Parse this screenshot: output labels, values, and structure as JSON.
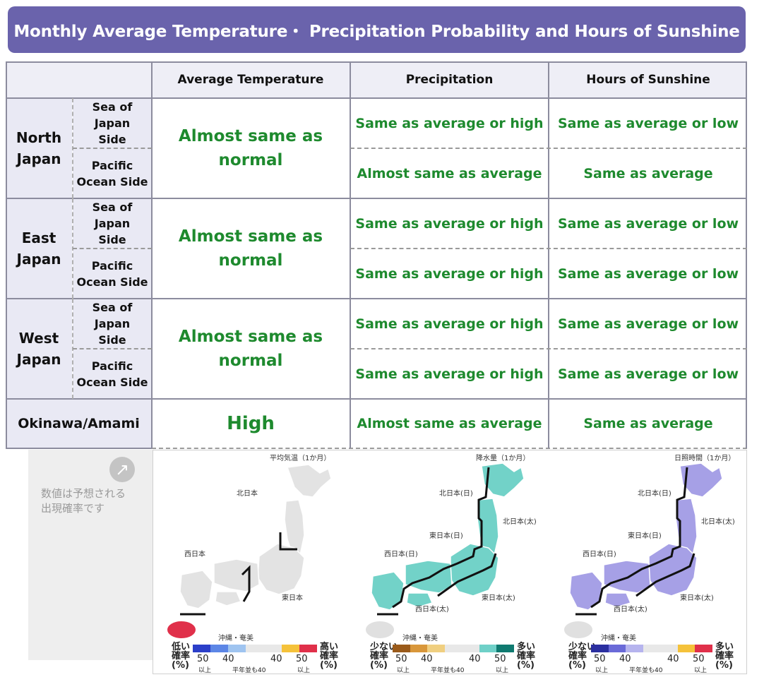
{
  "title": "Monthly Average Temperature・ Precipitation Probability and Hours of Sunshine",
  "headers": {
    "temperature": "Average Temperature",
    "precipitation": "Precipitation",
    "sunshine": "Hours of Sunshine"
  },
  "regions": [
    {
      "name_l1": "North",
      "name_l2": "Japan",
      "sides": [
        {
          "l1": "Sea of Japan",
          "l2": "Side",
          "precip": "Same as average or high",
          "sun": "Same as average or low"
        },
        {
          "l1": "Pacific",
          "l2": "Ocean Side",
          "precip": "Almost same as average",
          "sun": "Same as average"
        }
      ],
      "temp_l1": "Almost same as",
      "temp_l2": "normal"
    },
    {
      "name_l1": "East",
      "name_l2": "Japan",
      "sides": [
        {
          "l1": "Sea of Japan",
          "l2": "Side",
          "precip": "Same as average or high",
          "sun": "Same as average or low"
        },
        {
          "l1": "Pacific",
          "l2": "Ocean Side",
          "precip": "Same as average or high",
          "sun": "Same as average or low"
        }
      ],
      "temp_l1": "Almost same as",
      "temp_l2": "normal"
    },
    {
      "name_l1": "West",
      "name_l2": "Japan",
      "sides": [
        {
          "l1": "Sea of Japan",
          "l2": "Side",
          "precip": "Same as average or high",
          "sun": "Same as average or low"
        },
        {
          "l1": "Pacific",
          "l2": "Ocean Side",
          "precip": "Same as average or high",
          "sun": "Same as average or low"
        }
      ],
      "temp_l1": "Almost same as",
      "temp_l2": "normal"
    }
  ],
  "okinawa": {
    "name": "Okinawa/Amami",
    "temp": "High",
    "precip": "Almost same as average",
    "sun": "Same as average"
  },
  "note": {
    "line1": "数値は予想される",
    "line2": "出現確率です"
  },
  "maps": {
    "temp": {
      "caption": "平均気温（1か月）",
      "labels": {
        "north": "北日本",
        "west": "西日本",
        "east": "東日本",
        "okinawa": "沖縄・奄美"
      },
      "legend_lo_1": "低い",
      "legend_lo_2": "確率",
      "legend_lo_3": "(%)",
      "legend_hi_1": "高い",
      "legend_hi_2": "確率",
      "legend_hi_3": "(%)",
      "colors": [
        "#2b3fc9",
        "#5c86e6",
        "#9fc4f0",
        "#e8e8e8",
        "#e8e8e8",
        "#f5c23a",
        "#e0304a"
      ],
      "fill": "#e3e3e3",
      "okinawa_fill": "#e0304a"
    },
    "precip": {
      "caption": "降水量（1か月）",
      "labels": {
        "north_s": "北日本(日)",
        "north_p": "北日本(太)",
        "east_s": "東日本(日)",
        "west_s": "西日本(日)",
        "west_p": "西日本(太)",
        "east_p": "東日本(太)",
        "okinawa": "沖縄・奄美"
      },
      "legend_lo_1": "少ない",
      "legend_lo_2": "確率",
      "legend_lo_3": "(%)",
      "legend_hi_1": "多い",
      "legend_hi_2": "確率",
      "legend_hi_3": "(%)",
      "colors": [
        "#9a5a1a",
        "#d9973a",
        "#f0cf80",
        "#e8e8e8",
        "#e8e8e8",
        "#6fd0c8",
        "#0f7a70"
      ],
      "fill": "#72d2c8",
      "okinawa_fill": "#e0e0e0"
    },
    "sun": {
      "caption": "日照時間（1か月）",
      "labels": {
        "north_s": "北日本(日)",
        "north_p": "北日本(太)",
        "east_s": "東日本(日)",
        "west_s": "西日本(日)",
        "west_p": "西日本(太)",
        "east_p": "東日本(太)",
        "okinawa": "沖縄・奄美"
      },
      "legend_lo_1": "少ない",
      "legend_lo_2": "確率",
      "legend_lo_3": "(%)",
      "legend_hi_1": "多い",
      "legend_hi_2": "確率",
      "legend_hi_3": "(%)",
      "colors": [
        "#2b2fa0",
        "#6a6ad8",
        "#b6b4ee",
        "#e8e8e8",
        "#e8e8e8",
        "#f5c23a",
        "#e0304a"
      ],
      "fill": "#a6a0e6",
      "okinawa_fill": "#e0e0e0"
    },
    "ticks": {
      "t1": "50",
      "t2": "40",
      "t3": "40",
      "t4": "50",
      "sub1": "以上",
      "sub2": "以上",
      "avg": "平年並も40"
    }
  }
}
